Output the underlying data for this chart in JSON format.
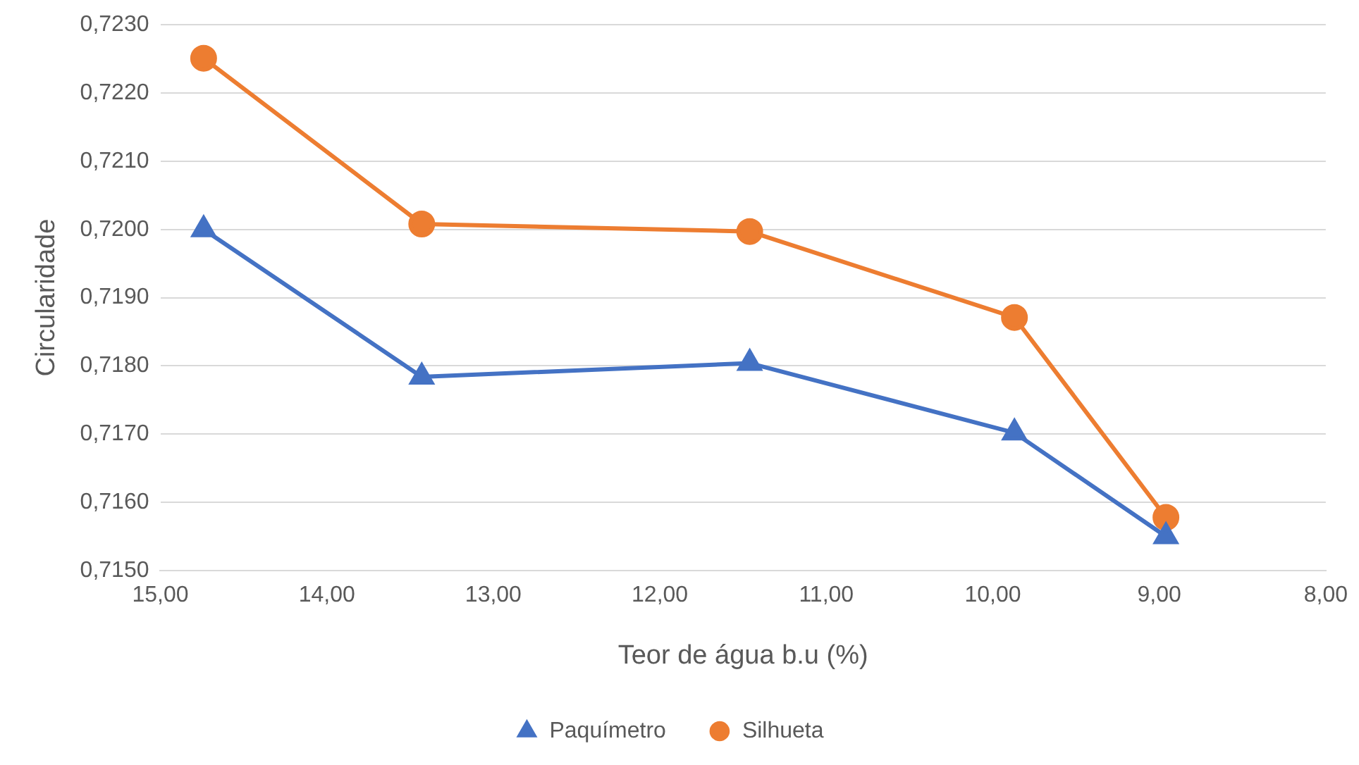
{
  "chart_data": {
    "type": "line",
    "xlabel": "Teor de água b.u (%)",
    "ylabel": "Circularidade",
    "xlim": [
      15,
      8
    ],
    "xticks": [
      {
        "value": 15,
        "label": "15,00"
      },
      {
        "value": 14,
        "label": "14,00"
      },
      {
        "value": 13,
        "label": "13,00"
      },
      {
        "value": 12,
        "label": "12,00"
      },
      {
        "value": 11,
        "label": "11,00"
      },
      {
        "value": 10,
        "label": "10,00"
      },
      {
        "value": 9,
        "label": "9,00"
      },
      {
        "value": 8,
        "label": "8,00"
      }
    ],
    "ylim": [
      0.715,
      0.723
    ],
    "yticks": [
      {
        "value": 0.715,
        "label": "0,7150"
      },
      {
        "value": 0.716,
        "label": "0,7160"
      },
      {
        "value": 0.717,
        "label": "0,7170"
      },
      {
        "value": 0.718,
        "label": "0,7180"
      },
      {
        "value": 0.719,
        "label": "0,7190"
      },
      {
        "value": 0.72,
        "label": "0,7200"
      },
      {
        "value": 0.721,
        "label": "0,7210"
      },
      {
        "value": 0.722,
        "label": "0,7220"
      },
      {
        "value": 0.723,
        "label": "0,7230"
      }
    ],
    "x": [
      14.74,
      13.43,
      11.46,
      9.87,
      8.96
    ],
    "series": [
      {
        "name": "Paquímetro",
        "color": "#4472c4",
        "marker": "triangle",
        "values": [
          0.72,
          0.71784,
          0.71804,
          0.71702,
          0.7155
        ]
      },
      {
        "name": "Silhueta",
        "color": "#ed7d31",
        "marker": "circle",
        "values": [
          0.72251,
          0.72008,
          0.71997,
          0.71871,
          0.71578
        ]
      }
    ],
    "grid": "y",
    "legend": "bottom",
    "line_style": "solid"
  }
}
